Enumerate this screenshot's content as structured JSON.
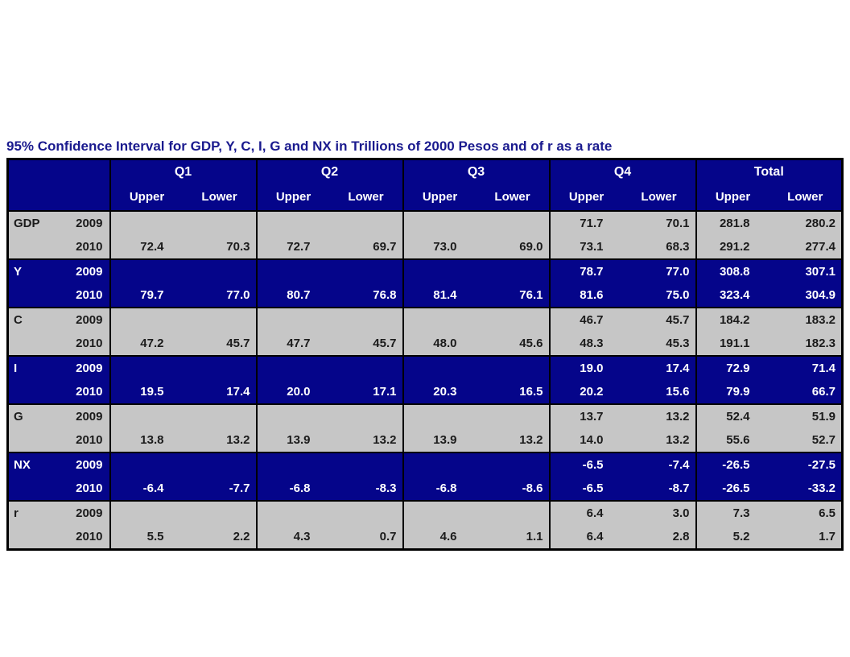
{
  "title": "95% Confidence Interval for GDP, Y, C, I, G and NX in Trillions of 2000 Pesos and of r as a rate",
  "colors": {
    "title_text": "#1a1a8e",
    "header_bg": "#05058a",
    "row_navy_bg": "#05058a",
    "row_gray_bg": "#c6c6c6",
    "border": "#000000",
    "header_text": "#ffffff",
    "gray_row_text": "#1b1b1b"
  },
  "chart_data": {
    "type": "table",
    "column_groups": [
      "Q1",
      "Q2",
      "Q3",
      "Q4",
      "Total"
    ],
    "sub_columns": [
      "Upper",
      "Lower"
    ],
    "rows": [
      {
        "variable": "GDP",
        "year": "2009",
        "style": "gray",
        "group_start": true,
        "values": [
          "",
          "",
          "",
          "",
          "",
          "",
          "71.7",
          "70.1",
          "281.8",
          "280.2"
        ]
      },
      {
        "variable": "",
        "year": "2010",
        "style": "gray",
        "group_start": false,
        "values": [
          "72.4",
          "70.3",
          "72.7",
          "69.7",
          "73.0",
          "69.0",
          "73.1",
          "68.3",
          "291.2",
          "277.4"
        ]
      },
      {
        "variable": "Y",
        "year": "2009",
        "style": "navy",
        "group_start": true,
        "values": [
          "",
          "",
          "",
          "",
          "",
          "",
          "78.7",
          "77.0",
          "308.8",
          "307.1"
        ]
      },
      {
        "variable": "",
        "year": "2010",
        "style": "navy",
        "group_start": false,
        "values": [
          "79.7",
          "77.0",
          "80.7",
          "76.8",
          "81.4",
          "76.1",
          "81.6",
          "75.0",
          "323.4",
          "304.9"
        ]
      },
      {
        "variable": "C",
        "year": "2009",
        "style": "gray",
        "group_start": true,
        "values": [
          "",
          "",
          "",
          "",
          "",
          "",
          "46.7",
          "45.7",
          "184.2",
          "183.2"
        ]
      },
      {
        "variable": "",
        "year": "2010",
        "style": "gray",
        "group_start": false,
        "values": [
          "47.2",
          "45.7",
          "47.7",
          "45.7",
          "48.0",
          "45.6",
          "48.3",
          "45.3",
          "191.1",
          "182.3"
        ]
      },
      {
        "variable": "I",
        "year": "2009",
        "style": "navy",
        "group_start": true,
        "values": [
          "",
          "",
          "",
          "",
          "",
          "",
          "19.0",
          "17.4",
          "72.9",
          "71.4"
        ]
      },
      {
        "variable": "",
        "year": "2010",
        "style": "navy",
        "group_start": false,
        "values": [
          "19.5",
          "17.4",
          "20.0",
          "17.1",
          "20.3",
          "16.5",
          "20.2",
          "15.6",
          "79.9",
          "66.7"
        ]
      },
      {
        "variable": "G",
        "year": "2009",
        "style": "gray",
        "group_start": true,
        "values": [
          "",
          "",
          "",
          "",
          "",
          "",
          "13.7",
          "13.2",
          "52.4",
          "51.9"
        ]
      },
      {
        "variable": "",
        "year": "2010",
        "style": "gray",
        "group_start": false,
        "values": [
          "13.8",
          "13.2",
          "13.9",
          "13.2",
          "13.9",
          "13.2",
          "14.0",
          "13.2",
          "55.6",
          "52.7"
        ]
      },
      {
        "variable": "NX",
        "year": "2009",
        "style": "navy",
        "group_start": true,
        "values": [
          "",
          "",
          "",
          "",
          "",
          "",
          "-6.5",
          "-7.4",
          "-26.5",
          "-27.5"
        ]
      },
      {
        "variable": "",
        "year": "2010",
        "style": "navy",
        "group_start": false,
        "values": [
          "-6.4",
          "-7.7",
          "-6.8",
          "-8.3",
          "-6.8",
          "-8.6",
          "-6.5",
          "-8.7",
          "-26.5",
          "-33.2"
        ]
      },
      {
        "variable": "r",
        "year": "2009",
        "style": "gray",
        "group_start": true,
        "values": [
          "",
          "",
          "",
          "",
          "",
          "",
          "6.4",
          "3.0",
          "7.3",
          "6.5"
        ]
      },
      {
        "variable": "",
        "year": "2010",
        "style": "gray",
        "group_start": false,
        "values": [
          "5.5",
          "2.2",
          "4.3",
          "0.7",
          "4.6",
          "1.1",
          "6.4",
          "2.8",
          "5.2",
          "1.7"
        ]
      }
    ]
  }
}
